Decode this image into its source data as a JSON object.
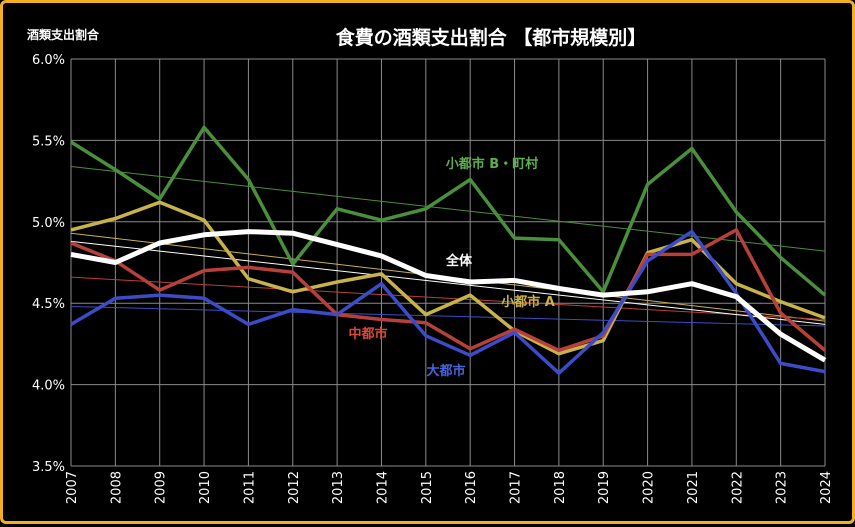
{
  "chart_data": {
    "type": "line",
    "title": "食費の酒類支出割合 【都市規模別】",
    "ylabel": "酒類支出割合",
    "xlabel": "",
    "ylim": [
      3.5,
      6.0
    ],
    "yticks": [
      "3.5%",
      "4.0%",
      "4.5%",
      "5.0%",
      "5.5%",
      "6.0%"
    ],
    "ytick_values": [
      3.5,
      4.0,
      4.5,
      5.0,
      5.5,
      6.0
    ],
    "x": [
      "2007",
      "2008",
      "2009",
      "2010",
      "2011",
      "2012",
      "2013",
      "2014",
      "2015",
      "2016",
      "2017",
      "2018",
      "2019",
      "2020",
      "2021",
      "2022",
      "2023",
      "2024"
    ],
    "grid": true,
    "series": [
      {
        "name": "小都市 B・町村",
        "color": "#4a8f3c",
        "label_color": "#5fae4e",
        "values": [
          5.49,
          5.32,
          5.14,
          5.58,
          5.26,
          4.74,
          5.08,
          5.01,
          5.08,
          5.26,
          4.9,
          4.89,
          4.57,
          5.23,
          5.45,
          5.06,
          4.78,
          4.55
        ],
        "trend": [
          5.34,
          4.82
        ],
        "label_pos": [
          2015.2,
          5.27
        ]
      },
      {
        "name": "",
        "color": "#c8b24a",
        "label_color": "#c8b24a",
        "values": [
          4.95,
          5.02,
          5.12,
          5.01,
          4.65,
          4.57,
          4.63,
          4.68,
          4.43,
          4.55,
          4.33,
          4.19,
          4.27,
          4.81,
          4.89,
          4.62,
          4.51,
          4.41
        ],
        "trend": [
          4.93,
          4.39
        ],
        "label_pos": null
      },
      {
        "name": "中都市",
        "color": "#b8403a",
        "label_color": "#d94a3a",
        "values": [
          4.87,
          4.76,
          4.58,
          4.7,
          4.72,
          4.69,
          4.43,
          4.4,
          4.38,
          4.22,
          4.34,
          4.21,
          4.3,
          4.8,
          4.8,
          4.95,
          4.44,
          4.21
        ],
        "trend": [
          4.66,
          4.4
        ],
        "label_pos": null
      },
      {
        "name": "大都市",
        "color": "#3c4cc8",
        "label_color": "#4a64d8",
        "values": [
          4.37,
          4.53,
          4.55,
          4.53,
          4.37,
          4.46,
          4.43,
          4.62,
          4.3,
          4.18,
          4.32,
          4.07,
          4.32,
          4.76,
          4.94,
          4.56,
          4.13,
          4.08
        ],
        "trend": [
          4.48,
          4.36
        ],
        "label_pos": null
      },
      {
        "name": "全体",
        "color": "#ffffff",
        "label_color": "#ffffff",
        "values": [
          4.8,
          4.75,
          4.87,
          4.92,
          4.94,
          4.93,
          4.86,
          4.79,
          4.67,
          4.63,
          4.64,
          4.59,
          4.55,
          4.57,
          4.62,
          4.54,
          4.31,
          4.15
        ],
        "trend": [
          4.88,
          4.37
        ],
        "label_pos": null
      }
    ],
    "labels": [
      {
        "text": "小都市 B・町村",
        "color": "#5fae4e"
      },
      {
        "text": "全体",
        "color": "#ffffff"
      },
      {
        "text": "小都市 A",
        "color": "#c8b24a"
      },
      {
        "text": "中都市",
        "color": "#d94a3a"
      },
      {
        "text": "大都市",
        "color": "#4a64d8"
      }
    ]
  }
}
